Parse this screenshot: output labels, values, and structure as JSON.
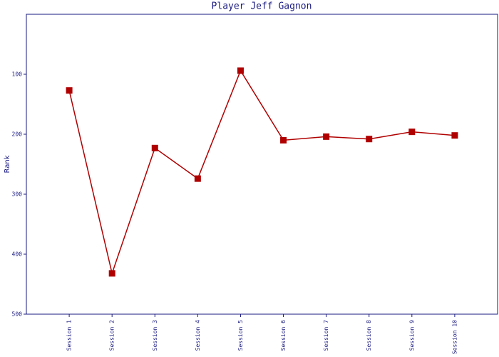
{
  "chart_data": {
    "type": "line",
    "title": "Player Jeff Gagnon",
    "y_label": "Rank",
    "categories": [
      "Session 1",
      "Session 2",
      "Session 3",
      "Session 4",
      "Session 5",
      "Session 6",
      "Session 7",
      "Session 8",
      "Session 9",
      "Session 10"
    ],
    "series": [
      {
        "name": "Rank",
        "color": "#b00000",
        "values": [
          127,
          432,
          223,
          274,
          94,
          210,
          204,
          208,
          196,
          202
        ]
      }
    ],
    "ylim": [
      0,
      500
    ],
    "yticks": [
      100,
      200,
      300,
      400,
      500
    ],
    "y_inverted": true,
    "axis_color": "#1a1a80"
  }
}
